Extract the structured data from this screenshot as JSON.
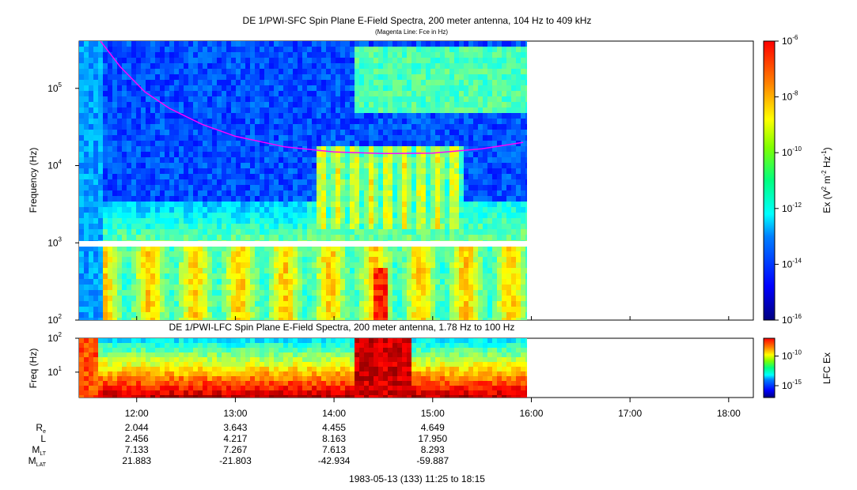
{
  "chart_data": [
    {
      "type": "heatmap",
      "title": "DE 1/PWI-SFC  Spin Plane E-Field Spectra, 200 meter antenna, 104 Hz to 409 kHz",
      "subtitle": "(Magenta Line: Fce in Hz)",
      "ylabel": "Frequency (Hz)",
      "yscale": "log",
      "ylim": [
        100,
        409000
      ],
      "yticks": [
        {
          "value": 100,
          "base": "10",
          "exp": "2"
        },
        {
          "value": 1000,
          "base": "10",
          "exp": "3"
        },
        {
          "value": 10000,
          "base": "10",
          "exp": "4"
        },
        {
          "value": 100000,
          "base": "10",
          "exp": "5"
        }
      ],
      "data_time_range": [
        "11:25",
        "16:00"
      ],
      "fce_line": {
        "color": "#ff00ff",
        "points": [
          {
            "t": "11:38",
            "f": 409000
          },
          {
            "t": "11:50",
            "f": 190000
          },
          {
            "t": "12:05",
            "f": 90000
          },
          {
            "t": "12:20",
            "f": 55000
          },
          {
            "t": "12:40",
            "f": 34000
          },
          {
            "t": "13:00",
            "f": 24000
          },
          {
            "t": "13:30",
            "f": 17500
          },
          {
            "t": "14:00",
            "f": 15000
          },
          {
            "t": "14:30",
            "f": 14300
          },
          {
            "t": "15:00",
            "f": 14500
          },
          {
            "t": "15:30",
            "f": 16500
          },
          {
            "t": "15:55",
            "f": 20000
          }
        ]
      },
      "colorbar": {
        "label": "Ex (V",
        "label_sup1": "2",
        "label_mid": " m",
        "label_sup2": "-2",
        "label_mid2": " Hz",
        "label_sup3": "-1",
        "label_end": ")",
        "ticks": [
          {
            "value": 1e-06,
            "base": "10",
            "exp": "-6"
          },
          {
            "value": 1e-08,
            "base": "10",
            "exp": "-8"
          },
          {
            "value": 1e-10,
            "base": "10",
            "exp": "-10"
          },
          {
            "value": 1e-12,
            "base": "10",
            "exp": "-12"
          },
          {
            "value": 1e-14,
            "base": "10",
            "exp": "-14"
          },
          {
            "value": 1e-16,
            "base": "10",
            "exp": "-16"
          }
        ]
      }
    },
    {
      "type": "heatmap",
      "title": "DE 1/PWI-LFC  Spin Plane E-Field Spectra, 200 meter antenna, 1.78 Hz to 100 Hz",
      "ylabel": "Freq (Hz)",
      "yscale": "log",
      "ylim": [
        1.78,
        100
      ],
      "yticks": [
        {
          "value": 10,
          "base": "10",
          "exp": "1"
        },
        {
          "value": 100,
          "base": "10",
          "exp": "2"
        }
      ],
      "data_time_range": [
        "11:25",
        "16:00"
      ],
      "colorbar": {
        "label": "LFC Ex",
        "ticks": [
          {
            "value": 1e-10,
            "base": "10",
            "exp": "-10"
          },
          {
            "value": 1e-15,
            "base": "10",
            "exp": "-15"
          }
        ]
      }
    }
  ],
  "time_axis": {
    "range": [
      "11:25",
      "18:15"
    ],
    "ticks": [
      "12:00",
      "13:00",
      "14:00",
      "15:00",
      "16:00",
      "17:00",
      "18:00"
    ]
  },
  "ephemeris": {
    "rows": [
      {
        "label": "R",
        "sub": "e",
        "values": [
          "2.044",
          "3.643",
          "4.455",
          "4.649"
        ]
      },
      {
        "label": "L",
        "sub": "",
        "values": [
          "2.456",
          "4.217",
          "8.163",
          "17.950"
        ]
      },
      {
        "label": "M",
        "sub": "LT",
        "values": [
          "7.133",
          "7.267",
          "7.613",
          "8.293"
        ]
      },
      {
        "label": "M",
        "sub": "LAT",
        "values": [
          "21.883",
          "-21.803",
          "-42.934",
          "-59.887"
        ]
      }
    ]
  },
  "footer": "1983-05-13 (133) 11:25 to 18:15"
}
